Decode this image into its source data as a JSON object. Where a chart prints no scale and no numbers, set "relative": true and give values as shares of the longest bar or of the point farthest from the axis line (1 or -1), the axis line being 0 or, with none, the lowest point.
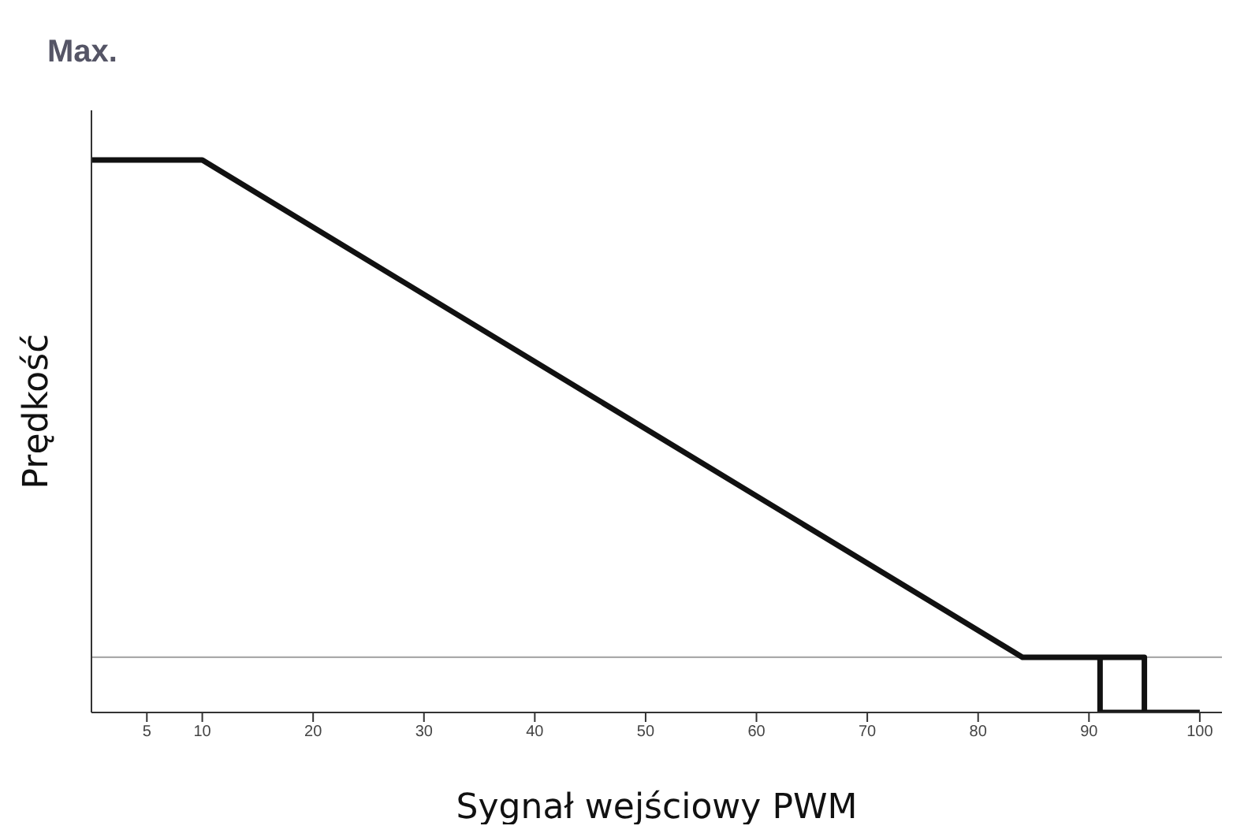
{
  "chart_data": {
    "type": "line",
    "relative": true,
    "xlabel": "Sygnał wejściowy PWM",
    "ylabel": "Prędkość",
    "annotations": [
      "Max."
    ],
    "xlim": [
      0,
      102
    ],
    "xticks": [
      5,
      10,
      20,
      30,
      40,
      50,
      60,
      70,
      80,
      90,
      100
    ],
    "series": [
      {
        "color": "#111111",
        "x": [
          0,
          10,
          84,
          95,
          95,
          100
        ],
        "values": [
          1,
          1,
          0.1,
          0.1,
          0,
          0
        ]
      },
      {
        "color": "#111111",
        "x": [
          91,
          91,
          95
        ],
        "values": [
          0.1,
          0,
          0
        ]
      }
    ],
    "ref_lines": [
      {
        "axis": "y",
        "value": 0.1,
        "color": "#aaaaaa"
      }
    ],
    "marker": "none",
    "line_style": "solid"
  }
}
